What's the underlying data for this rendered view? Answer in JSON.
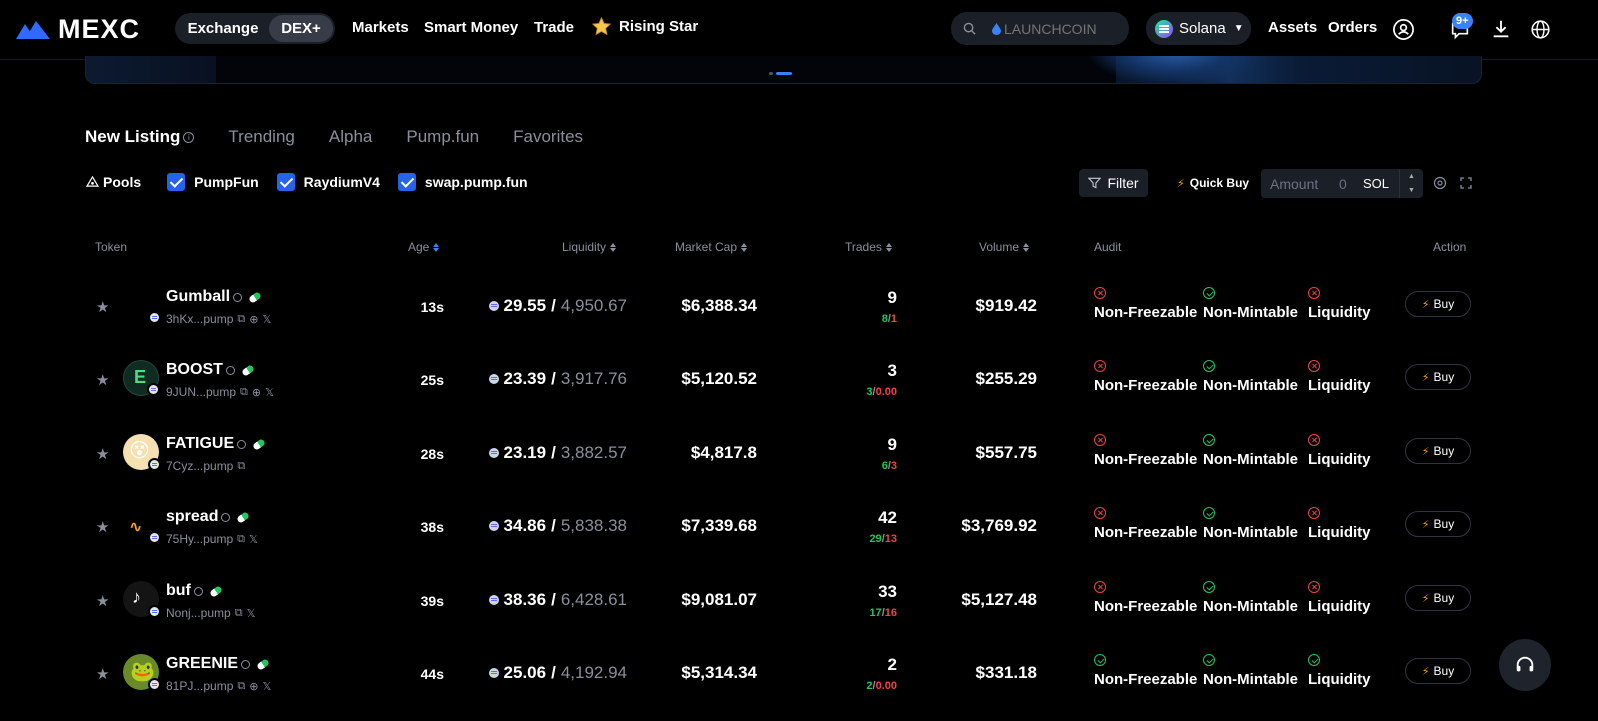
{
  "nav": {
    "brand": "MEXC",
    "seg": [
      "Exchange",
      "DEX+"
    ],
    "links": [
      "Markets",
      "Smart Money",
      "Trade",
      "Rising Star"
    ],
    "search_placeholder": "LAUNCHCOIN",
    "chain": "Solana",
    "assets": "Assets",
    "orders": "Orders",
    "notif_badge": "9+"
  },
  "tabs": [
    "New Listing",
    "Trending",
    "Alpha",
    "Pump.fun",
    "Favorites"
  ],
  "pools": {
    "label": "Pools",
    "options": [
      "PumpFun",
      "RaydiumV4",
      "swap.pump.fun"
    ]
  },
  "toolbar": {
    "filter": "Filter",
    "quick_buy": "Quick Buy",
    "amount_placeholder": "Amount",
    "amount_value": "0",
    "amount_unit": "SOL"
  },
  "columns": {
    "token": "Token",
    "age": "Age",
    "liquidity": "Liquidity",
    "market_cap": "Market Cap",
    "trades": "Trades",
    "volume": "Volume",
    "audit": "Audit",
    "action": "Action"
  },
  "audit_labels": [
    "Non-Freezable",
    "Non-Mintable",
    "Liquidity"
  ],
  "buy_label": "Buy",
  "rows": [
    {
      "name": "Gumball",
      "addr": "3hKx...pump",
      "age": "13s",
      "liq_sol": "29.55",
      "liq_usd": "4,950.67",
      "mcap": "$6,388.34",
      "trades": "9",
      "buys": "8",
      "sells": "1",
      "volume": "$919.42",
      "audit": [
        "bad",
        "good",
        "bad"
      ]
    },
    {
      "name": "BOOST",
      "addr": "9JUN...pump",
      "age": "25s",
      "liq_sol": "23.39",
      "liq_usd": "3,917.76",
      "mcap": "$5,120.52",
      "trades": "3",
      "buys": "3",
      "sells": "0.00",
      "volume": "$255.29",
      "audit": [
        "bad",
        "good",
        "bad"
      ]
    },
    {
      "name": "FATIGUE",
      "addr": "7Cyz...pump",
      "age": "28s",
      "liq_sol": "23.19",
      "liq_usd": "3,882.57",
      "mcap": "$4,817.8",
      "trades": "9",
      "buys": "6",
      "sells": "3",
      "volume": "$557.75",
      "audit": [
        "bad",
        "good",
        "bad"
      ]
    },
    {
      "name": "spread",
      "addr": "75Hy...pump",
      "age": "38s",
      "liq_sol": "34.86",
      "liq_usd": "5,838.38",
      "mcap": "$7,339.68",
      "trades": "42",
      "buys": "29",
      "sells": "13",
      "volume": "$3,769.92",
      "audit": [
        "bad",
        "good",
        "bad"
      ]
    },
    {
      "name": "buf",
      "addr": "Nonj...pump",
      "age": "39s",
      "liq_sol": "38.36",
      "liq_usd": "6,428.61",
      "mcap": "$9,081.07",
      "trades": "33",
      "buys": "17",
      "sells": "16",
      "volume": "$5,127.48",
      "audit": [
        "bad",
        "good",
        "bad"
      ]
    },
    {
      "name": "GREENIE",
      "addr": "81PJ...pump",
      "age": "44s",
      "liq_sol": "25.06",
      "liq_usd": "4,192.94",
      "mcap": "$5,314.34",
      "trades": "2",
      "buys": "2",
      "sells": "0.00",
      "volume": "$331.18",
      "audit": [
        "good",
        "good",
        "good"
      ]
    }
  ]
}
